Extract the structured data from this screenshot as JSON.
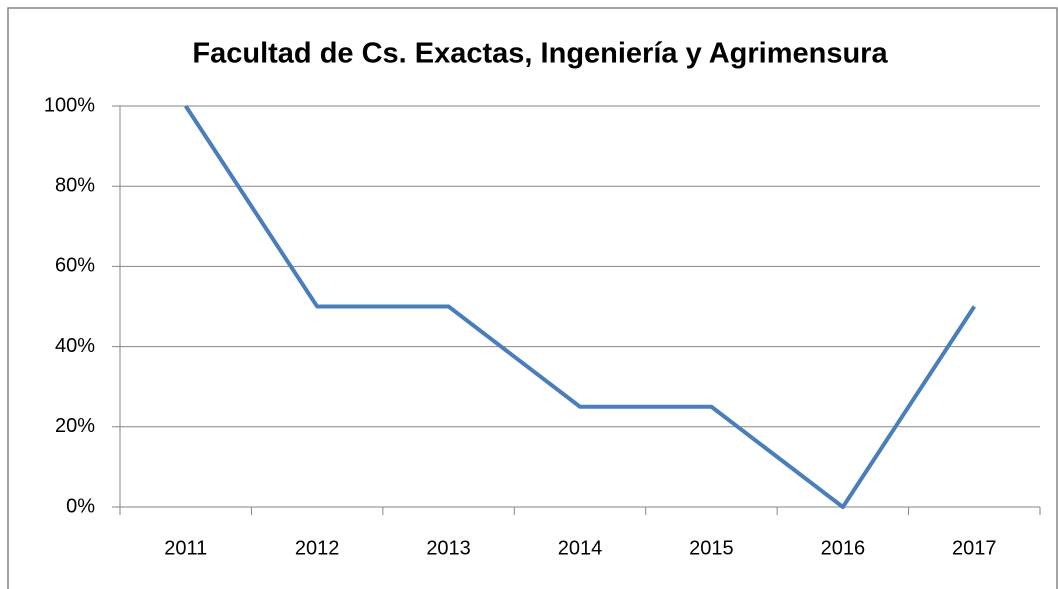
{
  "chart_data": {
    "type": "line",
    "title": "Facultad de Cs. Exactas, Ingeniería y Agrimensura",
    "categories": [
      "2011",
      "2012",
      "2013",
      "2014",
      "2015",
      "2016",
      "2017"
    ],
    "values": [
      100,
      50,
      50,
      25,
      25,
      0,
      50
    ],
    "color": "#4a7ebb",
    "ylim": [
      0,
      100
    ],
    "yticks": [
      {
        "value": 0,
        "label": "0%"
      },
      {
        "value": 20,
        "label": "20%"
      },
      {
        "value": 40,
        "label": "40%"
      },
      {
        "value": 60,
        "label": "60%"
      },
      {
        "value": 80,
        "label": "80%"
      },
      {
        "value": 100,
        "label": "100%"
      }
    ],
    "grid": true
  }
}
